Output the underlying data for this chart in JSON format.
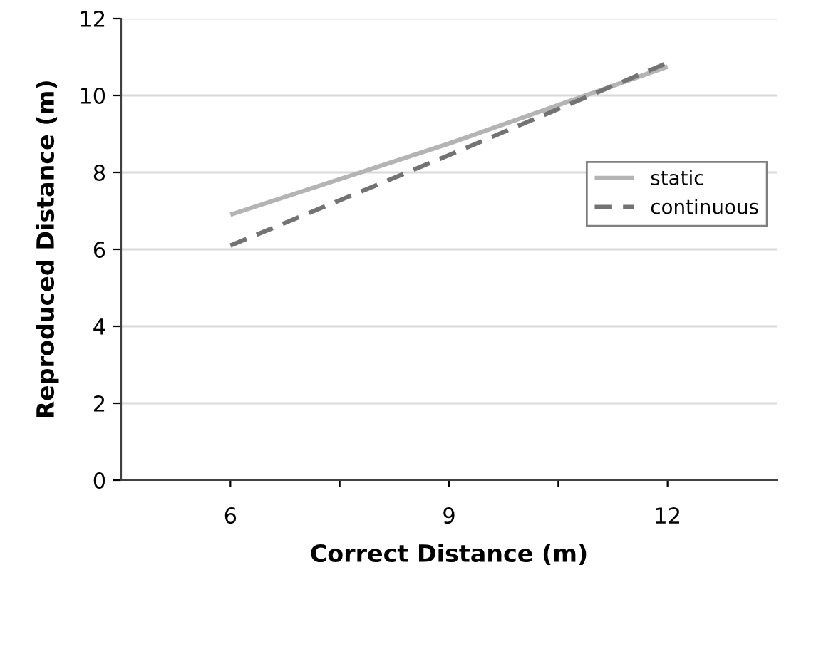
{
  "chart_data": {
    "type": "line",
    "xlabel": "Correct Distance (m)",
    "ylabel": "Reproduced Distance (m)",
    "x": [
      6,
      9,
      12
    ],
    "series": [
      {
        "name": "static",
        "color": "#b4b4b4",
        "values": [
          6.9,
          8.75,
          10.75
        ],
        "line_style": "solid"
      },
      {
        "name": "continuous",
        "color": "#737373",
        "values": [
          6.1,
          8.45,
          10.85
        ],
        "line_style": "dashed"
      }
    ],
    "xlim": [
      4.5,
      13.5
    ],
    "xticks": [
      6,
      {
        "value": 7.5,
        "label": null
      },
      9,
      {
        "value": 10.5,
        "label": null
      },
      12
    ],
    "ylim": [
      0,
      12
    ],
    "yticks": [
      0,
      2,
      4,
      6,
      8,
      10,
      12
    ],
    "grid": "y",
    "legend": "right",
    "marker": "none"
  }
}
